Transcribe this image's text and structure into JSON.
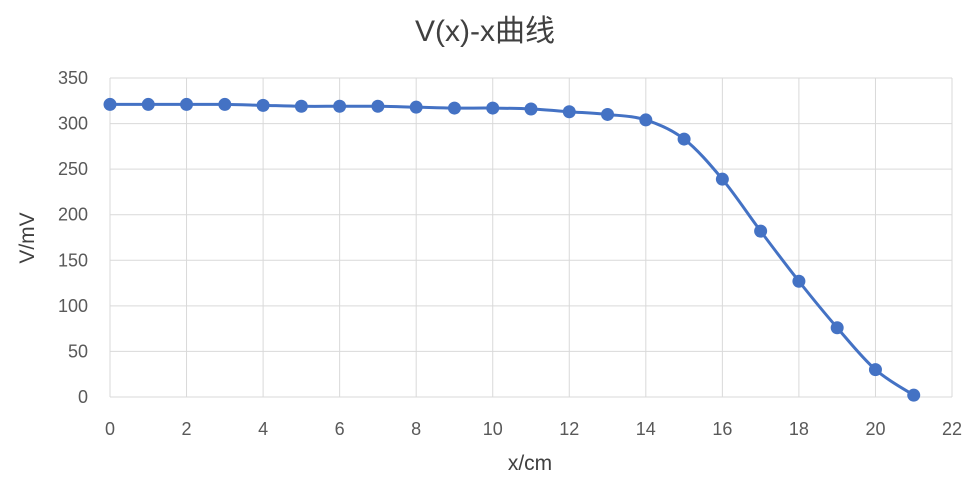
{
  "chart_data": {
    "type": "line",
    "title": "V(x)-x曲线",
    "xlabel": "x/cm",
    "ylabel": "V/mV",
    "xlim": [
      0,
      22
    ],
    "ylim": [
      0,
      350
    ],
    "xticks": [
      "0",
      "2",
      "4",
      "6",
      "8",
      "10",
      "12",
      "14",
      "16",
      "18",
      "20",
      "22"
    ],
    "yticks": [
      "0",
      "50",
      "100",
      "150",
      "200",
      "250",
      "300",
      "350"
    ],
    "grid": true,
    "legend": "none",
    "line_color": "#4472C4",
    "series": [
      {
        "x": [
          0,
          1,
          2,
          3,
          4,
          5,
          6,
          7,
          8,
          9,
          10,
          11,
          12,
          13,
          14,
          15,
          16,
          17,
          18,
          19,
          20,
          21
        ],
        "values": [
          321,
          321,
          321,
          321,
          320,
          319,
          319,
          319,
          318,
          317,
          317,
          316,
          313,
          310,
          304,
          283,
          239,
          182,
          127,
          76,
          30,
          2
        ]
      }
    ]
  }
}
